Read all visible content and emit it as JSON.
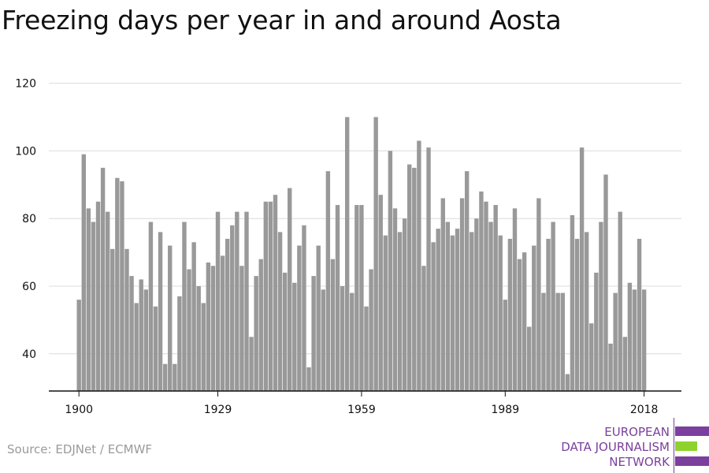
{
  "chart_data": {
    "type": "bar",
    "title": "Freezing days per year in and around Aosta",
    "xlabel": "",
    "ylabel": "",
    "x_tick_labels": [
      "1900",
      "1929",
      "1959",
      "1989",
      "2018"
    ],
    "y_ticks": [
      40,
      60,
      80,
      100,
      120
    ],
    "ylim": [
      29,
      120
    ],
    "grid": true,
    "legend": "none",
    "bar_color": "#999999",
    "x_start": 1900,
    "values": [
      56,
      99,
      83,
      79,
      85,
      95,
      82,
      71,
      92,
      91,
      71,
      63,
      55,
      62,
      59,
      79,
      54,
      76,
      37,
      72,
      37,
      57,
      79,
      65,
      73,
      60,
      55,
      67,
      66,
      82,
      69,
      74,
      78,
      82,
      66,
      82,
      45,
      63,
      68,
      85,
      85,
      87,
      76,
      64,
      89,
      61,
      72,
      78,
      36,
      63,
      72,
      59,
      94,
      68,
      84,
      60,
      110,
      58,
      84,
      84,
      54,
      65,
      110,
      87,
      75,
      100,
      83,
      76,
      80,
      96,
      95,
      103,
      66,
      101,
      73,
      77,
      86,
      79,
      75,
      77,
      86,
      94,
      76,
      80,
      88,
      85,
      79,
      84,
      75,
      56,
      74,
      83,
      68,
      70,
      48,
      72,
      86,
      58,
      74,
      79,
      58,
      58,
      34,
      81,
      74,
      101,
      76,
      49,
      64,
      79,
      93,
      43,
      58,
      82,
      45,
      61,
      59,
      74,
      59
    ]
  },
  "source": "Source: EDJNet / ECMWF",
  "logo": {
    "lines": [
      "EUROPEAN",
      "DATA JOURNALISM",
      "NETWORK"
    ],
    "purple": "#7b3f9e",
    "green": "#8ed22e"
  }
}
